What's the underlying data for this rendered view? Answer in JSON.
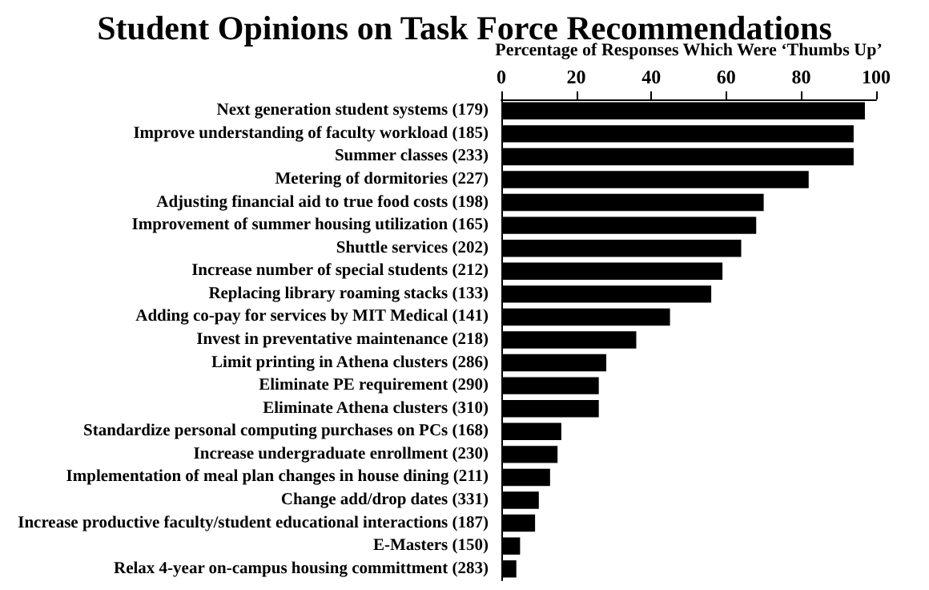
{
  "chart_data": {
    "type": "bar",
    "orientation": "horizontal",
    "title": "Student Opinions on Task Force Recommendations",
    "xlabel": "Percentage of Responses Which Were ‘Thumbs Up’",
    "categories": [
      "Next generation student systems (179)",
      "Improve understanding of faculty workload (185)",
      "Summer classes (233)",
      "Metering of dormitories (227)",
      "Adjusting financial aid to true food costs (198)",
      "Improvement of summer housing utilization (165)",
      "Shuttle services (202)",
      "Increase number of special students (212)",
      "Replacing library roaming stacks (133)",
      "Adding co-pay for services by MIT Medical (141)",
      "Invest in preventative maintenance (218)",
      "Limit printing in Athena clusters (286)",
      "Eliminate PE requirement (290)",
      "Eliminate Athena clusters (310)",
      "Standardize personal computing purchases on PCs (168)",
      "Increase undergraduate enrollment (230)",
      "Implementation of meal plan changes in house dining (211)",
      "Change add/drop dates (331)",
      "Increase productive faculty/student educational interactions (187)",
      "E-Masters (150)",
      "Relax 4-year on-campus housing committment (283)"
    ],
    "values": [
      97,
      94,
      94,
      82,
      70,
      68,
      64,
      59,
      56,
      45,
      36,
      28,
      26,
      26,
      16,
      15,
      13,
      10,
      9,
      5,
      4
    ],
    "color": "#000000",
    "xlim": [
      0,
      100
    ],
    "xticks": [
      0,
      20,
      40,
      60,
      80,
      100
    ],
    "grid": false
  }
}
